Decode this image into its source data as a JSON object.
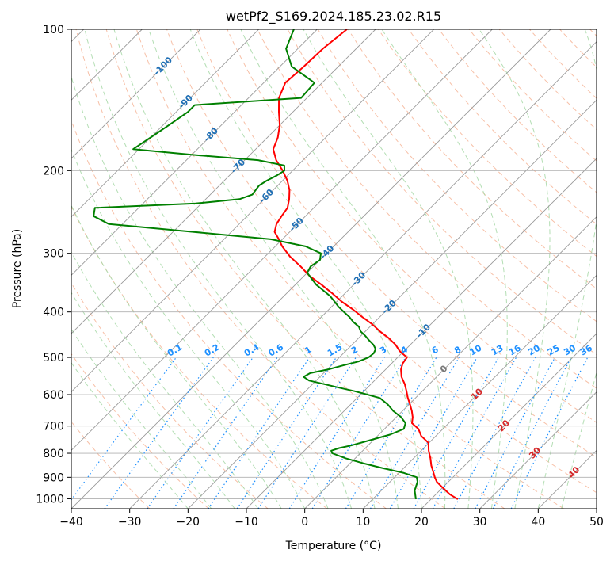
{
  "chart_data": {
    "type": "line",
    "title": "wetPf2_S169.2024.185.23.02.R15",
    "xlabel": "Temperature (°C)",
    "ylabel": "Pressure (hPa)",
    "xlim": [
      -40,
      50
    ],
    "ylim": [
      1050,
      100
    ],
    "y_scale": "log",
    "skew": "skew-T log-p diagram",
    "grid": true,
    "x_ticks": [
      "−40",
      "−30",
      "−20",
      "−10",
      "0",
      "10",
      "20",
      "30",
      "40",
      "50"
    ],
    "x_tick_values": [
      -40,
      -30,
      -20,
      -10,
      0,
      10,
      20,
      30,
      40,
      50
    ],
    "y_ticks": [
      "1000",
      "900",
      "800",
      "700",
      "600",
      "500",
      "400",
      "300",
      "200",
      "100"
    ],
    "y_tick_values": [
      1000,
      900,
      800,
      700,
      600,
      500,
      400,
      300,
      200,
      100
    ],
    "colors": {
      "temperature": "#ff0000",
      "dewpoint": "#008000",
      "isotherm": "#999999",
      "dry_adiabat": "#f4a582",
      "moist_adiabat": "#a6d8a6",
      "mixing_ratio": "#1e90ff",
      "isotherm_label": "#1f6fb5",
      "dry_adiabat_label": "#d62728",
      "zero_label": "#777777",
      "gridline": "#b0b0b0"
    },
    "isotherm_labels": [
      "-100",
      "-90",
      "-80",
      "-70",
      "-60",
      "-50",
      "-40",
      "-30",
      "-20",
      "-10"
    ],
    "isotherm_label_temps": [
      -100,
      -90,
      -80,
      -70,
      -60,
      -50,
      -40,
      -30,
      -20,
      -10
    ],
    "isotherm_label_pressures": [
      120,
      143,
      168,
      196,
      227,
      261,
      299,
      341,
      391,
      440
    ],
    "mixing_ratio_labels": [
      "0.1",
      "0.2",
      "0.4",
      "0.6",
      "1",
      "1.5",
      "2",
      "3",
      "4",
      "6",
      "8",
      "10",
      "13",
      "16",
      "20",
      "25",
      "30",
      "36"
    ],
    "mixing_ratio_values": [
      0.1,
      0.2,
      0.4,
      0.6,
      1,
      1.5,
      2,
      3,
      4,
      6,
      8,
      10,
      13,
      16,
      20,
      25,
      30,
      36
    ],
    "zero_label": "0",
    "dry_adiabat_labels": [
      "10",
      "20",
      "30",
      "40"
    ],
    "dry_adiabat_label_temps": [
      10,
      20,
      30,
      40
    ],
    "dry_adiabat_label_pressures": [
      600,
      700,
      800,
      880
    ],
    "series": [
      {
        "name": "Temperature",
        "color": "#ff0000",
        "pressure": [
          1002,
          980,
          960,
          940,
          920,
          900,
          880,
          850,
          820,
          790,
          760,
          735,
          710,
          690,
          670,
          650,
          630,
          610,
          590,
          570,
          550,
          530,
          515,
          500,
          485,
          470,
          455,
          440,
          425,
          410,
          395,
          380,
          365,
          350,
          335,
          320,
          305,
          290,
          280,
          270,
          260,
          250,
          240,
          230,
          220,
          210,
          200,
          190,
          180,
          170,
          160,
          150,
          140,
          130,
          120,
          110,
          100
        ],
        "temp": [
          24.6,
          22.5,
          21.0,
          19.5,
          18.0,
          16.9,
          15.9,
          14.3,
          12.9,
          11.3,
          9.9,
          7.5,
          5.8,
          3.7,
          2.8,
          1.6,
          0.2,
          -1.3,
          -2.7,
          -4.2,
          -6.0,
          -7.4,
          -8.1,
          -8.4,
          -10.7,
          -12.5,
          -14.8,
          -17.5,
          -20.0,
          -23.0,
          -25.9,
          -29.2,
          -32.2,
          -35.5,
          -39.1,
          -42.2,
          -45.7,
          -48.8,
          -50.6,
          -52.6,
          -53.6,
          -54.1,
          -54.5,
          -55.7,
          -57.2,
          -59.2,
          -61.7,
          -64.6,
          -67.0,
          -68.2,
          -70.0,
          -72.4,
          -74.8,
          -76.3,
          -75.9,
          -75.7,
          -74.9
        ]
      },
      {
        "name": "Dewpoint",
        "color": "#008000",
        "pressure": [
          1002,
          960,
          920,
          900,
          880,
          860,
          840,
          820,
          800,
          790,
          780,
          770,
          750,
          730,
          710,
          690,
          670,
          650,
          630,
          610,
          600,
          590,
          580,
          570,
          560,
          550,
          540,
          530,
          520,
          510,
          500,
          490,
          480,
          470,
          460,
          450,
          440,
          430,
          420,
          410,
          400,
          390,
          380,
          370,
          360,
          350,
          340,
          330,
          320,
          310,
          300,
          290,
          280,
          270,
          260,
          250,
          245,
          240,
          235,
          230,
          225,
          220,
          215,
          210,
          205,
          200,
          195,
          190,
          185,
          180,
          170,
          160,
          150,
          145,
          140,
          130,
          120,
          110,
          100
        ],
        "temp": [
          17.4,
          15.7,
          14.7,
          13.8,
          10.7,
          6.3,
          2.2,
          -1.6,
          -4.8,
          -5.4,
          -4.5,
          -2.9,
          -0.5,
          1.9,
          3.3,
          2.6,
          0.8,
          -1.6,
          -3.6,
          -6.1,
          -8.8,
          -11.6,
          -14.8,
          -18.0,
          -21.2,
          -22.8,
          -22.3,
          -19.8,
          -18.0,
          -16.0,
          -15.0,
          -14.8,
          -15.2,
          -16.3,
          -17.8,
          -19.2,
          -20.8,
          -21.9,
          -23.7,
          -25.2,
          -27.0,
          -28.8,
          -30.4,
          -32.1,
          -34.2,
          -36.4,
          -38.2,
          -40.0,
          -40.5,
          -40.0,
          -41.0,
          -44.8,
          -52.0,
          -66.6,
          -82.3,
          -86.3,
          -86.9,
          -87.5,
          -71.0,
          -64.2,
          -62.8,
          -63.0,
          -63.2,
          -62.7,
          -61.9,
          -61.4,
          -62.3,
          -67.7,
          -80.0,
          -91.0,
          -90.0,
          -89.0,
          -88.0,
          -88.0,
          -71.0,
          -71.3,
          -78.0,
          -82.0,
          -84.0
        ]
      }
    ]
  }
}
